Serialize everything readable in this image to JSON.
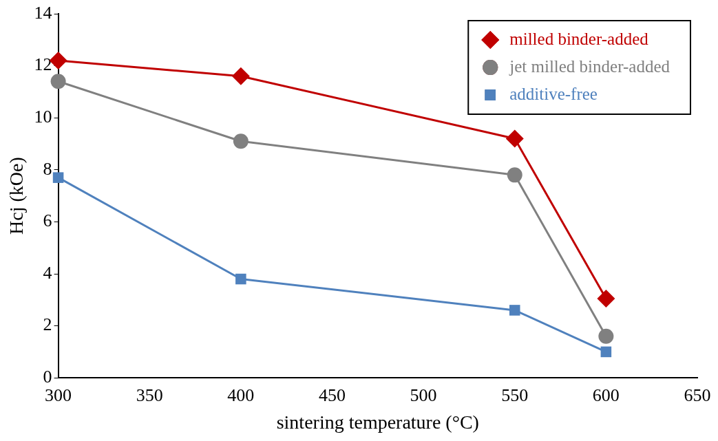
{
  "chart_data": {
    "type": "line",
    "xlabel": "sintering temperature (°C)",
    "ylabel": "Hcj (kOe)",
    "x": [
      300,
      400,
      550,
      600
    ],
    "series": [
      {
        "name": "milled binder-added",
        "color": "#c00000",
        "marker": "diamond",
        "values": [
          12.2,
          11.6,
          9.2,
          3.05
        ]
      },
      {
        "name": "jet milled binder-added",
        "color": "#808080",
        "marker": "circle",
        "values": [
          11.4,
          9.1,
          7.8,
          1.6
        ]
      },
      {
        "name": "additive-free",
        "color": "#4f81bd",
        "marker": "square",
        "values": [
          7.7,
          3.8,
          2.6,
          1.0
        ]
      }
    ],
    "xlim": [
      300,
      650
    ],
    "xticks": [
      300,
      350,
      400,
      450,
      500,
      550,
      600,
      650
    ],
    "ylim": [
      0,
      14
    ],
    "yticks": [
      0,
      2,
      4,
      6,
      8,
      10,
      12,
      14
    ],
    "grid": false,
    "legend": "top right",
    "line_style": "solid"
  }
}
